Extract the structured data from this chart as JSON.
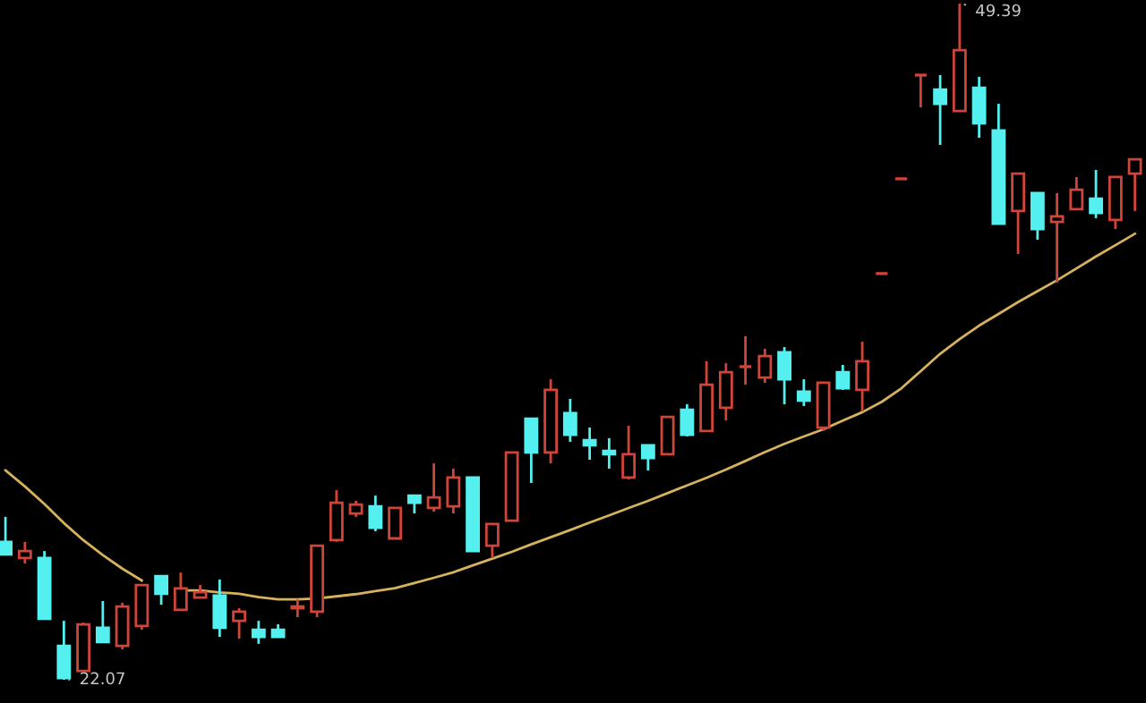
{
  "chart_data": {
    "type": "candlestick",
    "categories": [
      null,
      null,
      null,
      null,
      null,
      null,
      null,
      null,
      null,
      null,
      null,
      null,
      null,
      null,
      null,
      null,
      null,
      null,
      null,
      null,
      null,
      null,
      null,
      null,
      null,
      null,
      null,
      null,
      null,
      null,
      null,
      null,
      null,
      null,
      null,
      null,
      null,
      null,
      null,
      null,
      null,
      null,
      null,
      null,
      null,
      null,
      null,
      null,
      null,
      null,
      null,
      null,
      null,
      null,
      null,
      null,
      null,
      null,
      null
    ],
    "ohlc": [
      [
        27.64,
        28.65,
        27.13,
        27.13
      ],
      [
        26.99,
        27.64,
        26.77,
        27.27
      ],
      [
        26.99,
        27.27,
        24.53,
        24.53
      ],
      [
        23.44,
        24.45,
        22.07,
        22.14
      ],
      [
        22.43,
        24.38,
        22.43,
        24.31
      ],
      [
        24.17,
        25.25,
        23.59,
        23.59
      ],
      [
        23.44,
        25.18,
        23.3,
        25.03
      ],
      [
        24.24,
        25.9,
        24.09,
        25.9
      ],
      [
        26.26,
        26.26,
        25.1,
        25.54
      ],
      [
        24.89,
        26.4,
        24.89,
        25.76
      ],
      [
        25.39,
        25.9,
        25.39,
        25.61
      ],
      [
        25.47,
        26.12,
        23.8,
        24.17
      ],
      [
        24.45,
        24.96,
        23.73,
        24.82
      ],
      [
        24.09,
        24.45,
        23.52,
        23.8
      ],
      [
        24.09,
        24.31,
        23.8,
        23.8
      ],
      [
        24.96,
        25.32,
        24.6,
        25.03
      ],
      [
        24.82,
        27.49,
        24.6,
        27.49
      ],
      [
        27.71,
        29.73,
        27.64,
        29.22
      ],
      [
        28.79,
        29.3,
        28.65,
        29.15
      ],
      [
        29.08,
        29.51,
        28.07,
        28.21
      ],
      [
        27.78,
        29.01,
        27.78,
        29.01
      ],
      [
        29.51,
        29.51,
        28.79,
        29.22
      ],
      [
        29.01,
        30.81,
        28.86,
        29.44
      ],
      [
        29.08,
        30.6,
        28.79,
        30.24
      ],
      [
        30.24,
        30.24,
        27.27,
        27.27
      ],
      [
        27.49,
        28.36,
        26.99,
        28.36
      ],
      [
        28.5,
        31.25,
        28.5,
        31.25
      ],
      [
        32.62,
        32.62,
        30.02,
        31.25
      ],
      [
        31.25,
        34.21,
        30.81,
        33.78
      ],
      [
        32.84,
        33.42,
        31.68,
        31.97
      ],
      [
        31.75,
        32.26,
        30.96,
        31.54
      ],
      [
        31.32,
        31.83,
        30.6,
        31.18
      ],
      [
        30.24,
        32.33,
        30.16,
        31.18
      ],
      [
        31.54,
        31.54,
        30.52,
        31.03
      ],
      [
        31.18,
        32.69,
        31.18,
        32.69
      ],
      [
        32.98,
        33.2,
        31.9,
        31.97
      ],
      [
        32.12,
        34.94,
        32.12,
        33.99
      ],
      [
        33.06,
        34.86,
        32.55,
        34.5
      ],
      [
        34.72,
        35.95,
        33.99,
        34.72
      ],
      [
        34.28,
        35.44,
        34.07,
        35.15
      ],
      [
        35.3,
        35.51,
        33.2,
        34.21
      ],
      [
        33.71,
        34.21,
        33.13,
        33.35
      ],
      [
        32.26,
        34.07,
        32.12,
        34.07
      ],
      [
        34.5,
        34.79,
        33.78,
        33.85
      ],
      [
        33.78,
        35.73,
        32.91,
        34.94
      ],
      [
        38.48,
        38.48,
        38.48,
        38.48
      ],
      [
        42.31,
        42.31,
        42.31,
        42.31
      ],
      [
        46.5,
        46.5,
        45.2,
        46.5
      ],
      [
        45.92,
        46.5,
        43.68,
        45.34
      ],
      [
        45.05,
        49.39,
        45.05,
        47.51
      ],
      [
        45.99,
        46.43,
        43.97,
        44.55
      ],
      [
        44.26,
        45.34,
        40.5,
        40.5
      ],
      [
        41.01,
        42.52,
        39.27,
        42.52
      ],
      [
        41.73,
        41.73,
        39.85,
        40.28
      ],
      [
        40.57,
        41.73,
        38.11,
        40.79
      ],
      [
        41.08,
        42.38,
        41.08,
        41.87
      ],
      [
        41.51,
        42.67,
        40.72,
        40.93
      ],
      [
        40.65,
        42.38,
        40.28,
        42.38
      ],
      [
        42.52,
        43.1,
        41.01,
        43.1
      ]
    ],
    "series": [
      {
        "type": "line",
        "color": "#d6b25e",
        "values": [
          30.53,
          29.88,
          29.17,
          28.4,
          27.71,
          27.11,
          26.56,
          26.08,
          null,
          25.68,
          25.68,
          25.6,
          25.54,
          25.41,
          25.32,
          25.32,
          25.35,
          25.44,
          25.53,
          25.65,
          25.77,
          25.98,
          26.19,
          26.41,
          26.69,
          26.96,
          27.24,
          27.54,
          27.83,
          28.12,
          28.42,
          28.71,
          29.01,
          29.3,
          29.61,
          29.92,
          30.23,
          30.56,
          30.91,
          31.27,
          31.6,
          31.9,
          32.19,
          32.54,
          32.88,
          33.3,
          33.84,
          34.54,
          35.24,
          35.83,
          36.38,
          36.85,
          37.33,
          37.77,
          38.21,
          38.69,
          39.17,
          39.63,
          40.09
        ]
      }
    ],
    "annotations": [
      "49.39",
      "22.07"
    ]
  }
}
